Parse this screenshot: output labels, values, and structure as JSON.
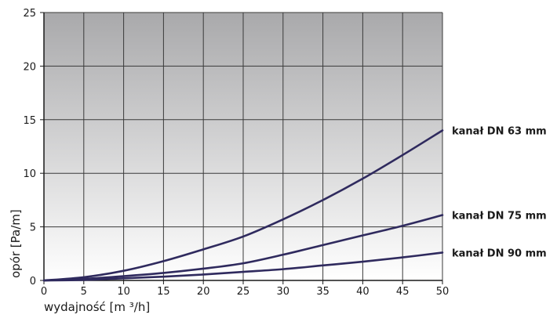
{
  "chart_data": {
    "type": "line",
    "xlabel": "wydajność  [m ³/h]",
    "ylabel": "opór  [Pa/m]",
    "xlim": [
      0,
      50
    ],
    "ylim": [
      0,
      25
    ],
    "x_ticks": [
      0,
      5,
      10,
      15,
      20,
      25,
      30,
      35,
      40,
      45,
      50
    ],
    "y_ticks": [
      0,
      5,
      10,
      15,
      20,
      25
    ],
    "grid": true,
    "background": "vertical gradient, white at bottom to gray at top",
    "line_color": "#2f2a5e",
    "series": [
      {
        "name": "kanał DN 63 mm",
        "x": [
          0,
          5,
          10,
          15,
          20,
          25,
          30,
          35,
          40,
          45,
          50
        ],
        "y": [
          0,
          0.3,
          0.9,
          1.8,
          2.9,
          4.1,
          5.7,
          7.5,
          9.5,
          11.7,
          14.0
        ]
      },
      {
        "name": "kanał DN 75 mm",
        "x": [
          0,
          5,
          10,
          15,
          20,
          25,
          30,
          35,
          40,
          45,
          50
        ],
        "y": [
          0,
          0.15,
          0.4,
          0.7,
          1.1,
          1.6,
          2.4,
          3.3,
          4.2,
          5.1,
          6.1
        ]
      },
      {
        "name": "kanał DN 90 mm",
        "x": [
          0,
          5,
          10,
          15,
          20,
          25,
          30,
          35,
          40,
          45,
          50
        ],
        "y": [
          0,
          0.05,
          0.2,
          0.35,
          0.55,
          0.8,
          1.05,
          1.4,
          1.75,
          2.15,
          2.6
        ]
      }
    ]
  }
}
